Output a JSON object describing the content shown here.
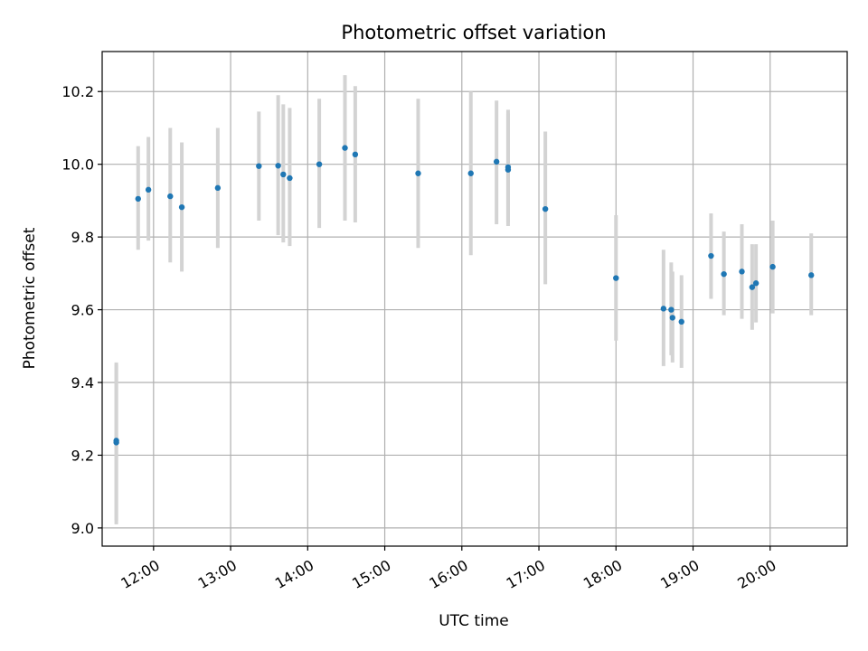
{
  "chart_data": {
    "type": "scatter",
    "title": "Photometric offset variation",
    "xlabel": "UTC time",
    "ylabel": "Photometric offset",
    "x_is_time": true,
    "xlim": [
      "11:20",
      "21:00"
    ],
    "ylim": [
      8.95,
      10.31
    ],
    "xticks": [
      "12:00",
      "13:00",
      "14:00",
      "15:00",
      "16:00",
      "17:00",
      "18:00",
      "19:00",
      "20:00"
    ],
    "yticks": [
      "9.0",
      "9.2",
      "9.4",
      "9.6",
      "9.8",
      "10.0",
      "10.2"
    ],
    "grid": true,
    "marker_color": "#1f77b4",
    "errorbar_color": "#d3d3d3",
    "points": [
      {
        "x": "11:31",
        "y": 9.235,
        "lo": 9.01,
        "hi": 9.45
      },
      {
        "x": "11:31",
        "y": 9.24,
        "lo": 9.02,
        "hi": 9.455
      },
      {
        "x": "11:48",
        "y": 9.905,
        "lo": 9.765,
        "hi": 10.05
      },
      {
        "x": "11:56",
        "y": 9.93,
        "lo": 9.79,
        "hi": 10.075
      },
      {
        "x": "12:13",
        "y": 9.912,
        "lo": 9.73,
        "hi": 10.1
      },
      {
        "x": "12:22",
        "y": 9.882,
        "lo": 9.705,
        "hi": 10.06
      },
      {
        "x": "12:50",
        "y": 9.935,
        "lo": 9.77,
        "hi": 10.1
      },
      {
        "x": "13:22",
        "y": 9.995,
        "lo": 9.845,
        "hi": 10.145
      },
      {
        "x": "13:37",
        "y": 9.996,
        "lo": 9.805,
        "hi": 10.19
      },
      {
        "x": "13:41",
        "y": 9.972,
        "lo": 9.785,
        "hi": 10.165
      },
      {
        "x": "13:46",
        "y": 9.962,
        "lo": 9.775,
        "hi": 10.155
      },
      {
        "x": "14:09",
        "y": 10.0,
        "lo": 9.825,
        "hi": 10.18
      },
      {
        "x": "14:29",
        "y": 10.045,
        "lo": 9.845,
        "hi": 10.245
      },
      {
        "x": "14:37",
        "y": 10.027,
        "lo": 9.84,
        "hi": 10.215
      },
      {
        "x": "15:26",
        "y": 9.975,
        "lo": 9.77,
        "hi": 10.18
      },
      {
        "x": "16:07",
        "y": 9.975,
        "lo": 9.75,
        "hi": 10.2
      },
      {
        "x": "16:27",
        "y": 10.007,
        "lo": 9.835,
        "hi": 10.175
      },
      {
        "x": "16:36",
        "y": 9.985,
        "lo": 9.83,
        "hi": 10.15
      },
      {
        "x": "16:36",
        "y": 9.992,
        "lo": 9.84,
        "hi": 10.14
      },
      {
        "x": "17:05",
        "y": 9.877,
        "lo": 9.67,
        "hi": 10.09
      },
      {
        "x": "18:00",
        "y": 9.687,
        "lo": 9.515,
        "hi": 9.86
      },
      {
        "x": "18:37",
        "y": 9.603,
        "lo": 9.445,
        "hi": 9.765
      },
      {
        "x": "18:43",
        "y": 9.6,
        "lo": 9.475,
        "hi": 9.73
      },
      {
        "x": "18:44",
        "y": 9.578,
        "lo": 9.455,
        "hi": 9.705
      },
      {
        "x": "18:51",
        "y": 9.567,
        "lo": 9.44,
        "hi": 9.695
      },
      {
        "x": "19:14",
        "y": 9.748,
        "lo": 9.63,
        "hi": 9.865
      },
      {
        "x": "19:24",
        "y": 9.698,
        "lo": 9.585,
        "hi": 9.815
      },
      {
        "x": "19:38",
        "y": 9.705,
        "lo": 9.575,
        "hi": 9.835
      },
      {
        "x": "19:46",
        "y": 9.662,
        "lo": 9.545,
        "hi": 9.78
      },
      {
        "x": "19:49",
        "y": 9.673,
        "lo": 9.565,
        "hi": 9.78
      },
      {
        "x": "20:02",
        "y": 9.718,
        "lo": 9.59,
        "hi": 9.845
      },
      {
        "x": "20:32",
        "y": 9.695,
        "lo": 9.585,
        "hi": 9.81
      }
    ]
  }
}
